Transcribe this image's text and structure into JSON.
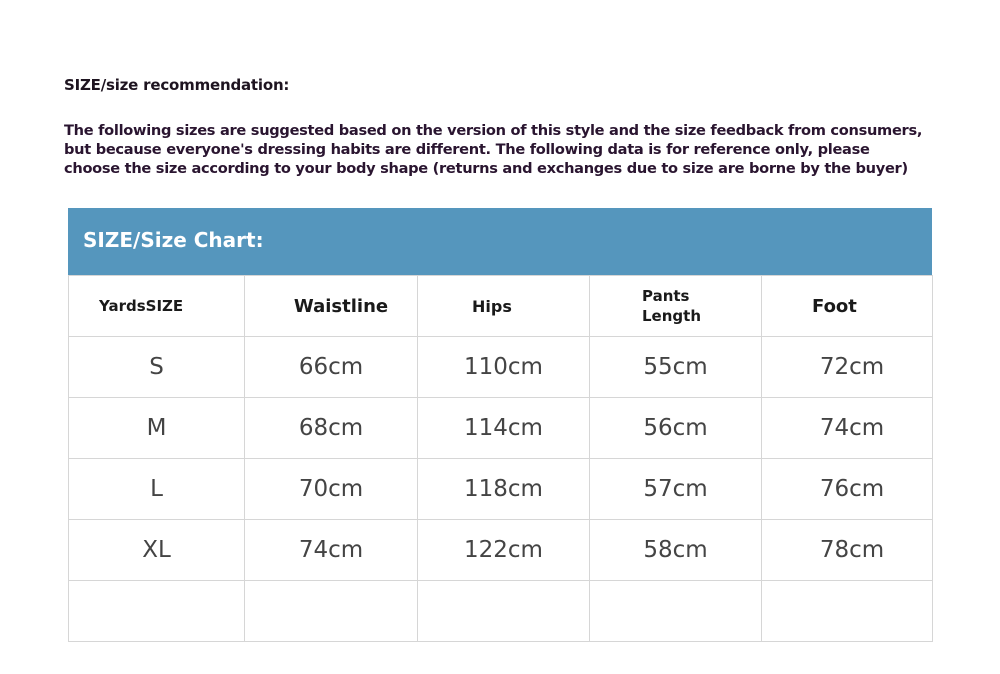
{
  "title": "SIZE/size recommendation:",
  "description": [
    "The following sizes are suggested based on the version of this style and the size feedback from consumers,",
    "but because everyone's dressing habits are different. The following data is for reference only, please",
    "choose the size according to your body shape (returns and exchanges due to size are borne by the buyer)"
  ],
  "chart": {
    "banner": "SIZE/Size Chart:",
    "banner_color": "#5596bd",
    "headers": [
      "YardsSIZE",
      "Waistline",
      "Hips",
      "Pants Length",
      "Foot"
    ],
    "rows": [
      [
        "S",
        "66cm",
        "110cm",
        "55cm",
        "72cm"
      ],
      [
        "M",
        "68cm",
        "114cm",
        "56cm",
        "74cm"
      ],
      [
        "L",
        "70cm",
        "118cm",
        "57cm",
        "76cm"
      ],
      [
        "XL",
        "74cm",
        "122cm",
        "58cm",
        "78cm"
      ]
    ]
  }
}
